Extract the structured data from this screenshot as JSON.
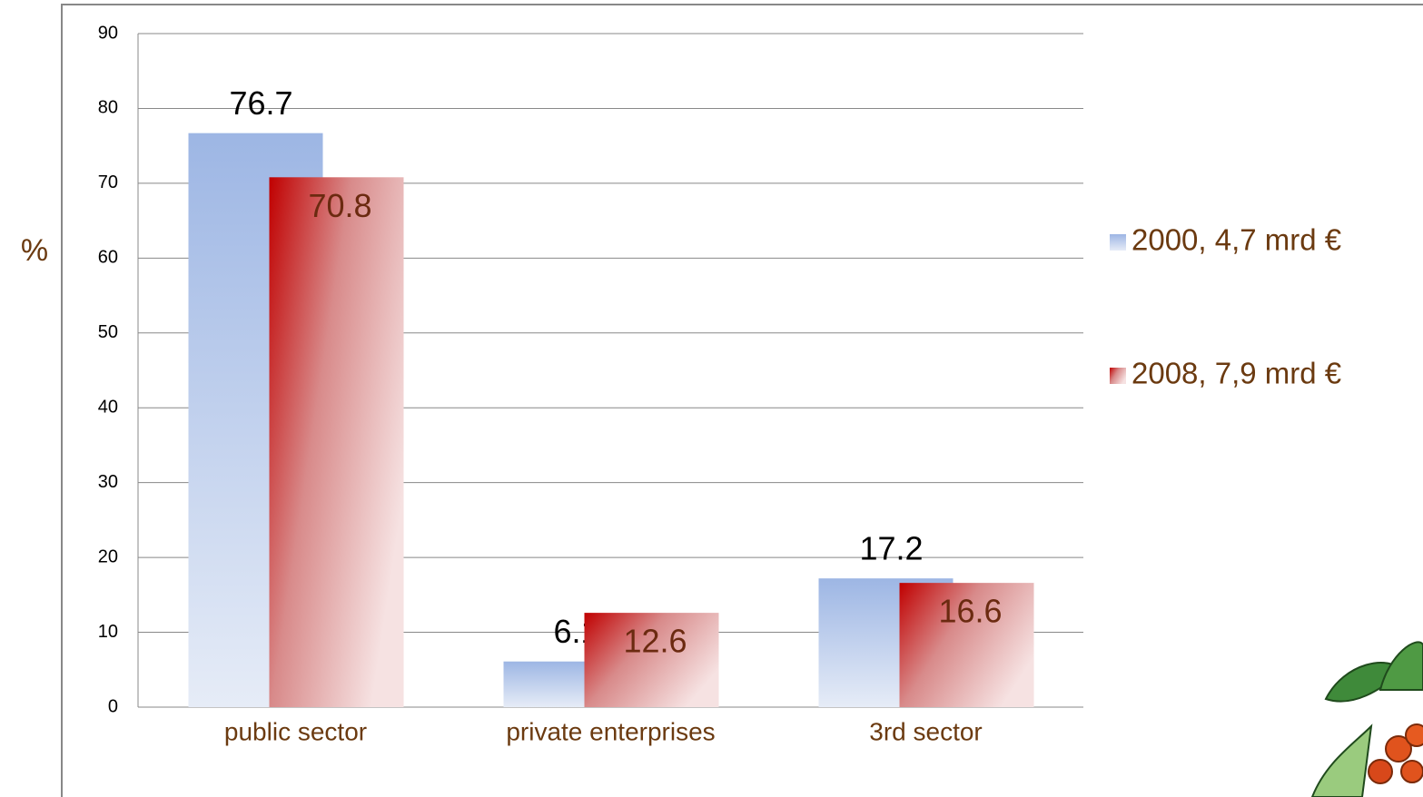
{
  "chart_data": {
    "type": "bar",
    "y_label": "%",
    "categories": [
      "public sector",
      "private enterprises",
      "3rd sector"
    ],
    "series": [
      {
        "name": "2000, 4,7 mrd €",
        "color": "#8eaadf",
        "values": [
          76.7,
          6.1,
          17.2
        ]
      },
      {
        "name": "2008, 7,9 mrd €",
        "color": "#c00000",
        "values": [
          70.8,
          12.6,
          16.6
        ]
      }
    ],
    "ylim": [
      0,
      90
    ],
    "yticks": [
      0,
      10,
      20,
      30,
      40,
      50,
      60,
      70,
      80,
      90
    ],
    "grid": true,
    "legend": "right"
  }
}
